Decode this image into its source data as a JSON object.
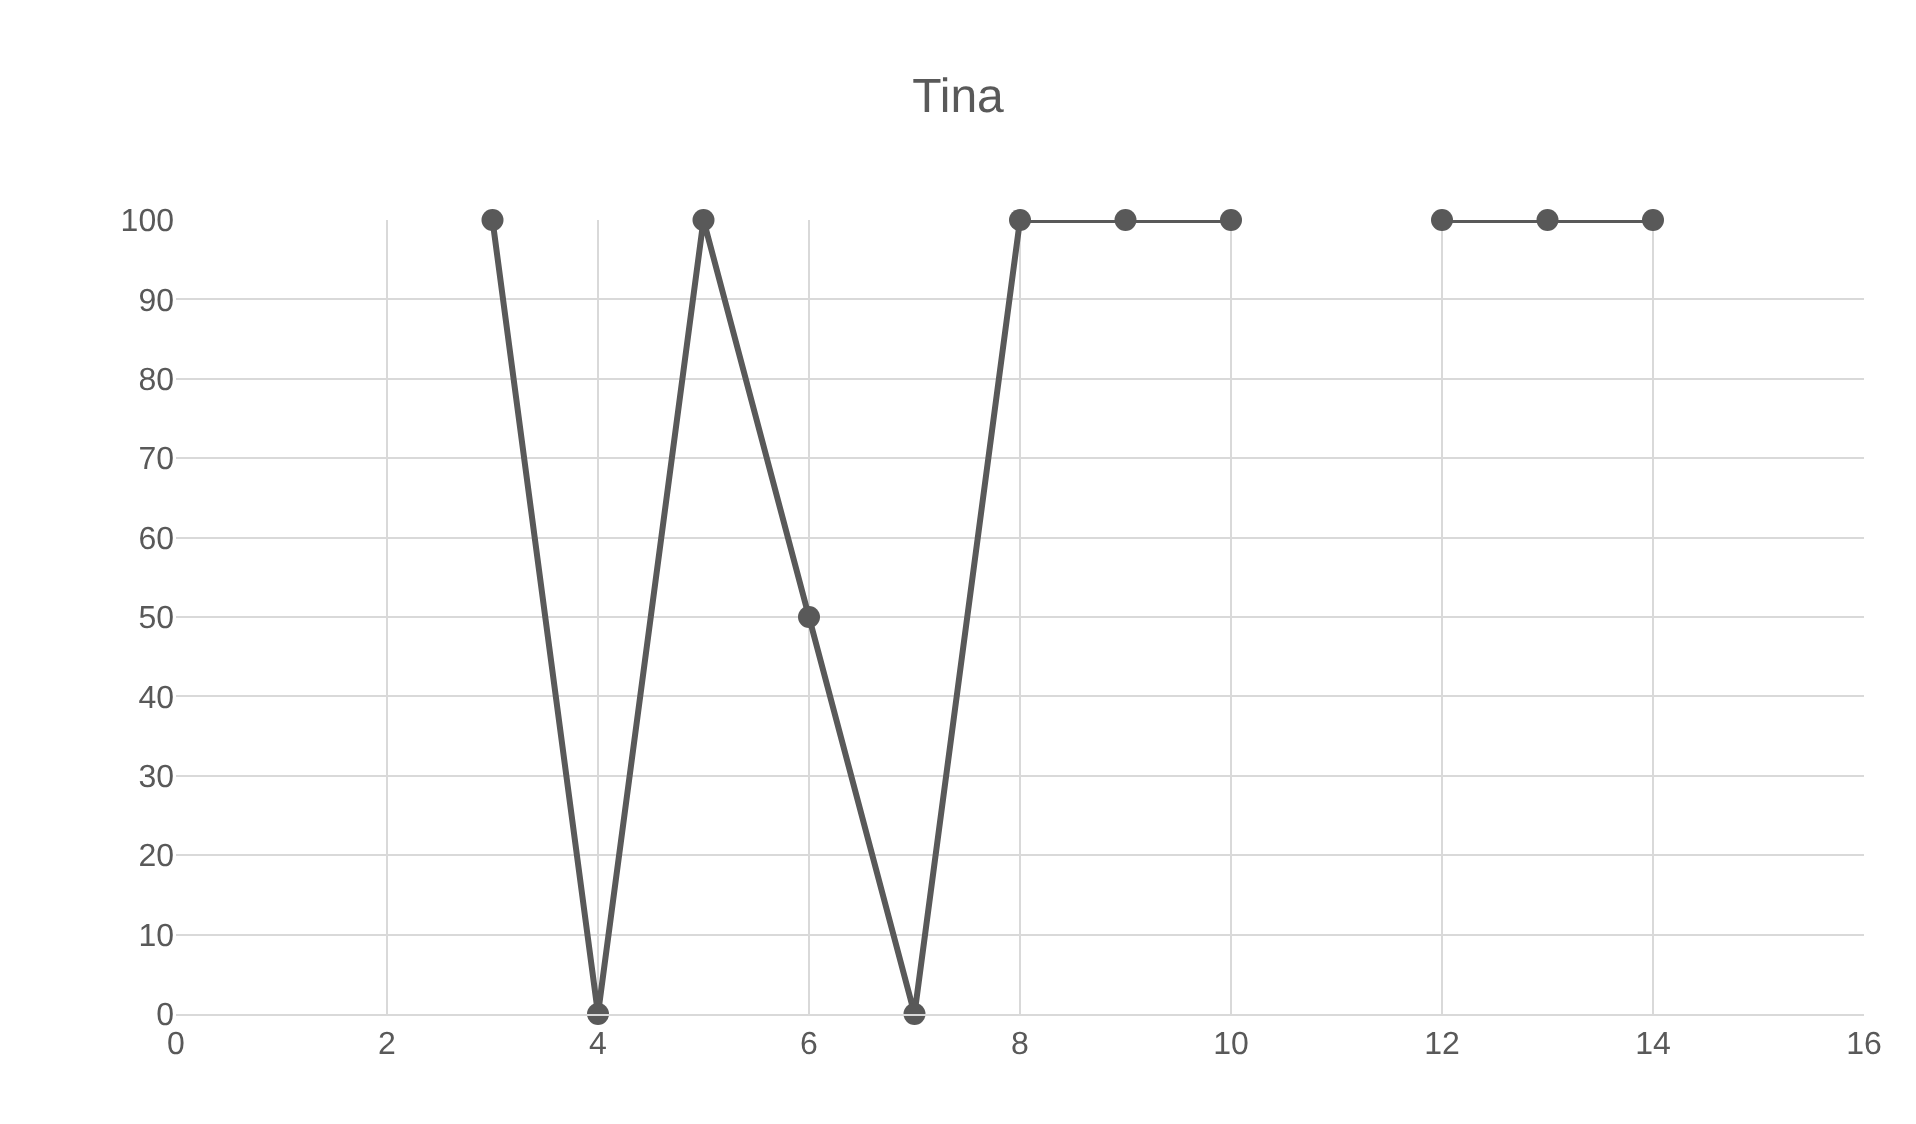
{
  "chart_data": {
    "type": "line",
    "title": "Tina",
    "x": [
      3,
      4,
      5,
      6,
      7,
      8,
      9,
      10,
      11,
      12,
      13,
      14
    ],
    "series": [
      {
        "color": "#595959",
        "values": [
          100,
          0,
          100,
          50,
          0,
          100,
          100,
          100,
          null,
          100,
          100,
          100
        ]
      }
    ],
    "xlim": [
      0,
      16
    ],
    "xticks": [
      0,
      2,
      4,
      6,
      8,
      10,
      12,
      14,
      16
    ],
    "ylim": [
      0,
      100
    ],
    "yticks": [
      0,
      10,
      20,
      30,
      40,
      50,
      60,
      70,
      80,
      90,
      100
    ],
    "grid": true,
    "marker": "circle",
    "line_style": "solid"
  }
}
